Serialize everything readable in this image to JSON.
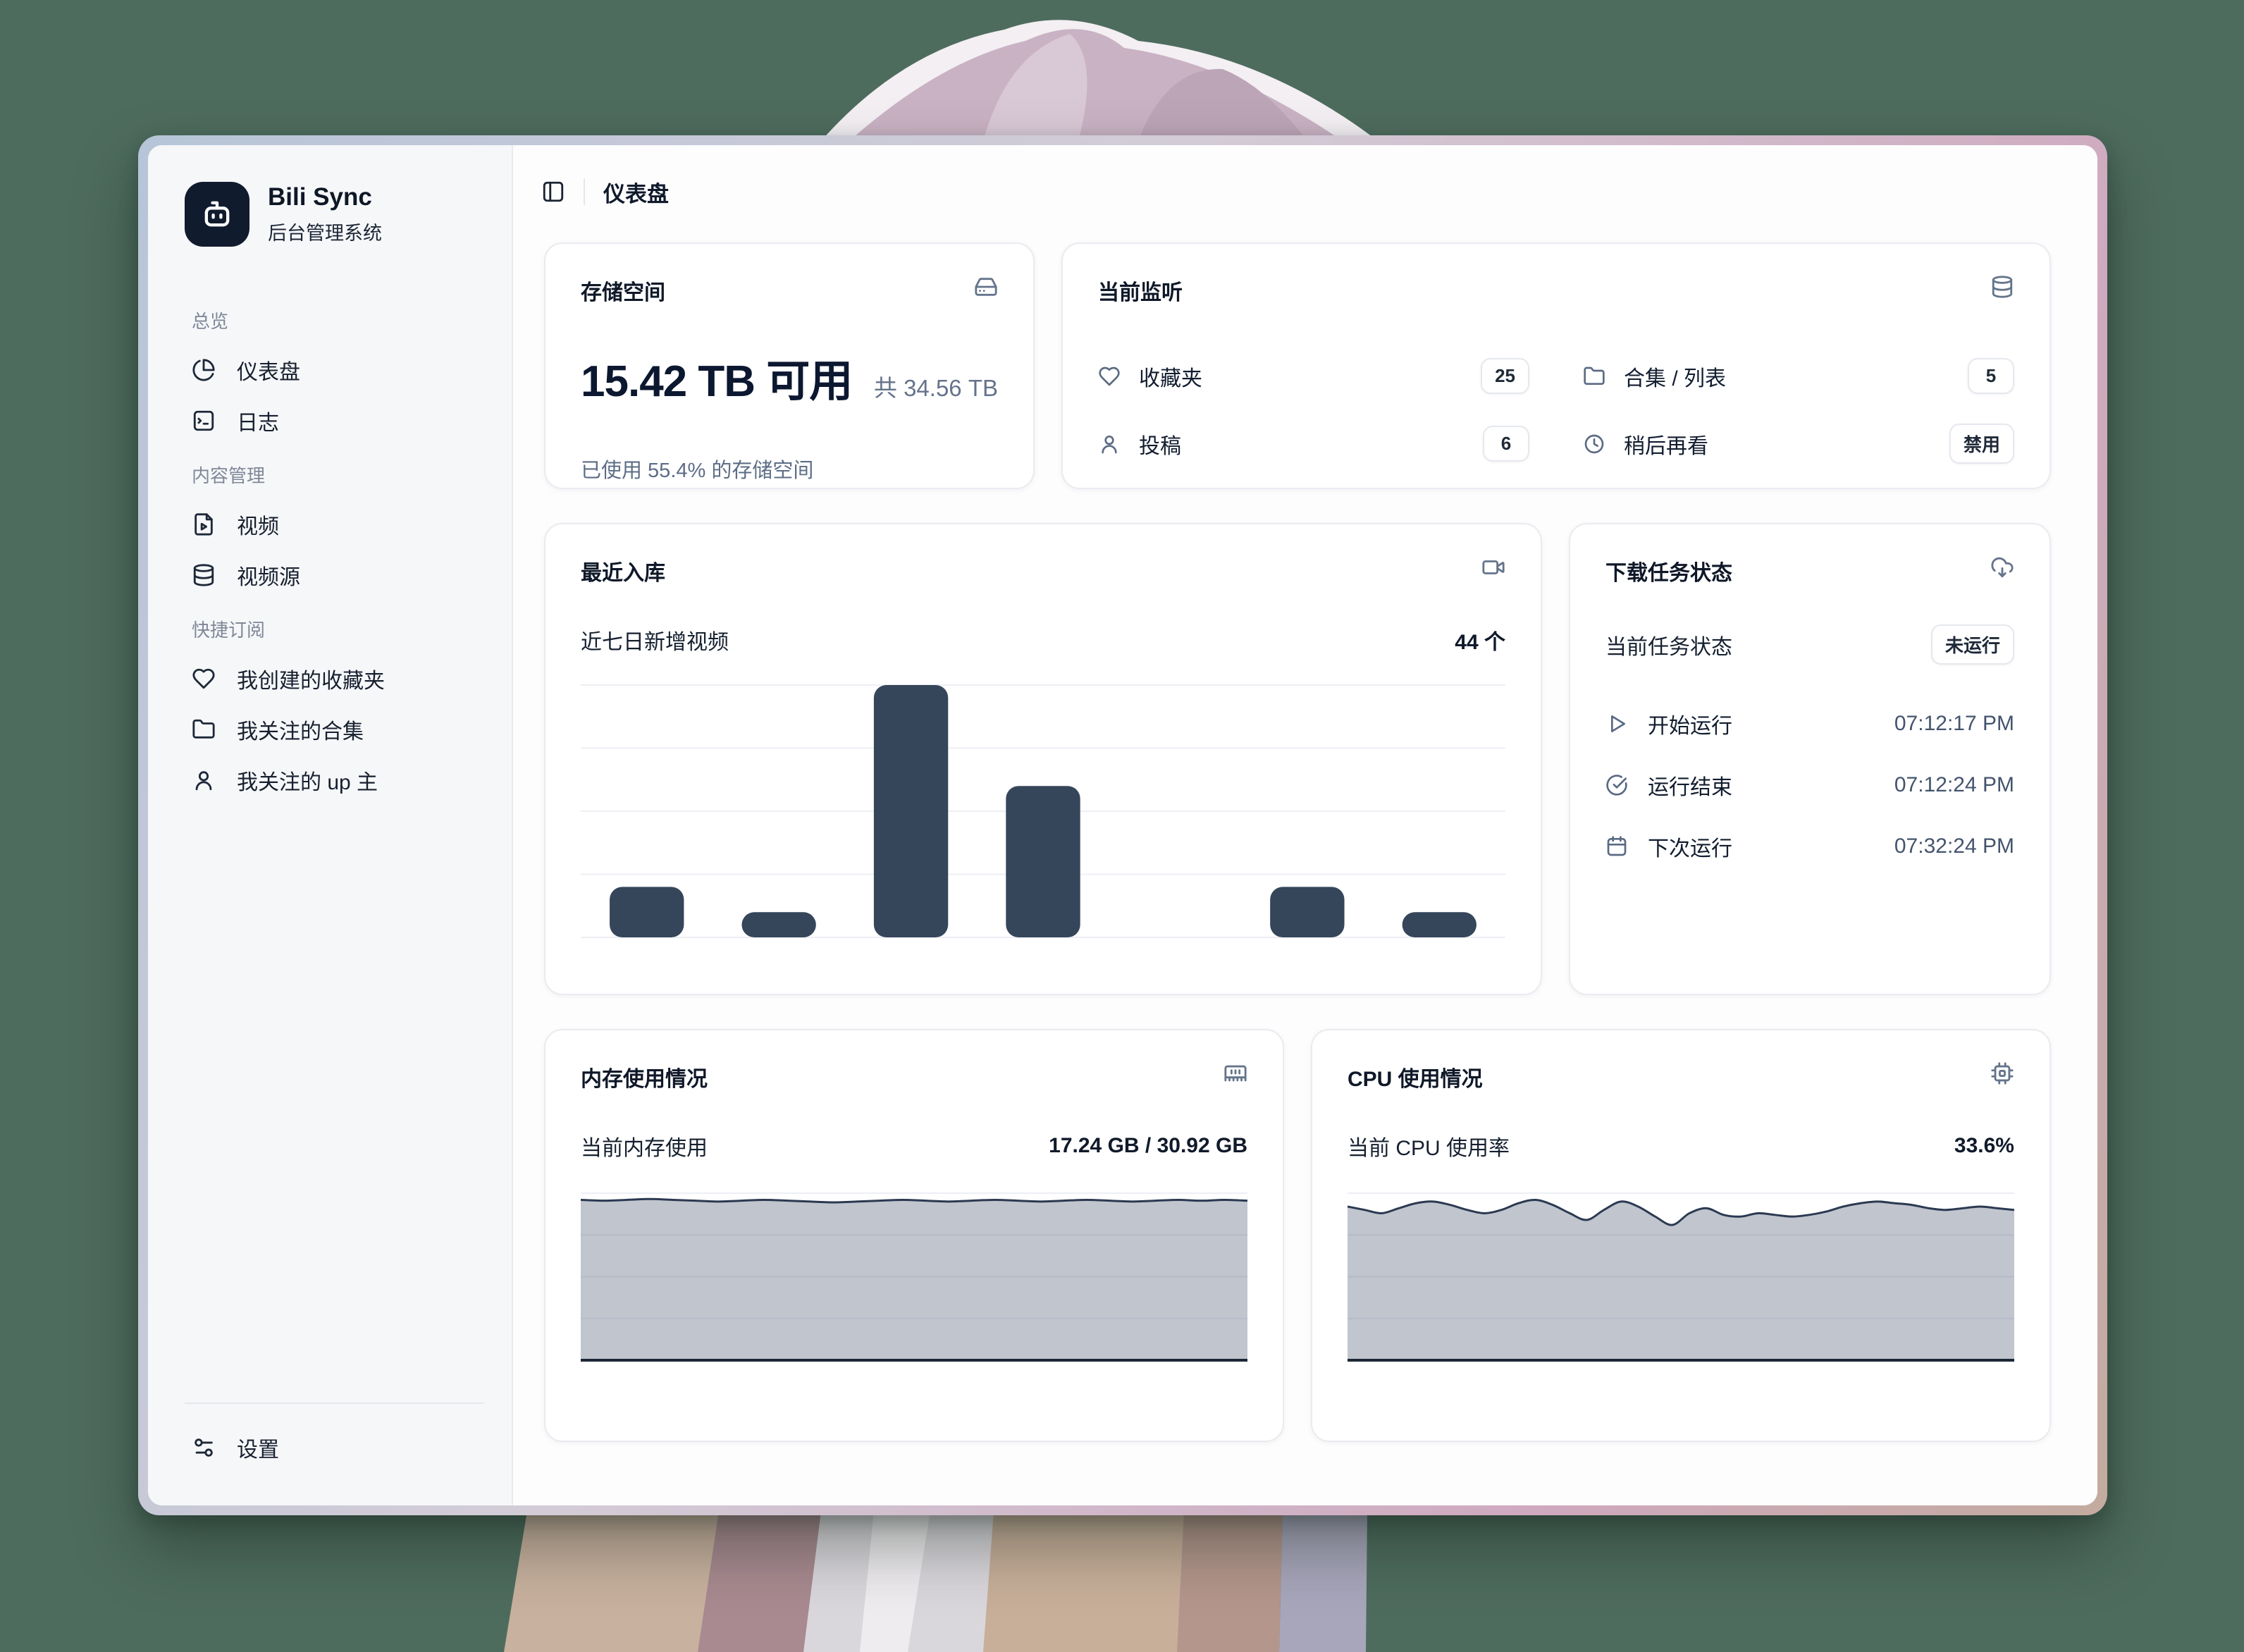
{
  "colors": {
    "background": "#4e6c5e",
    "frame_gradient_left": "#b6c5d8",
    "frame_gradient_right": "#cfa9bf",
    "sidebar_bg": "#f6f7f9",
    "card_border": "#e9ebf0",
    "text_dark": "#0f1828",
    "text_muted": "#5d6d86",
    "icon_slate": "#64748b",
    "progress_fill": "#16233c",
    "progress_track": "#d5d8dd",
    "bar": "#35455a",
    "area_fill": "rgba(104,116,138,0.42)",
    "area_stroke": "#2b3951",
    "area_baseline": "#1c2737",
    "gridline": "#edeff4"
  },
  "sidebar": {
    "logo": {
      "title": "Bili Sync",
      "subtitle": "后台管理系统"
    },
    "sections": [
      {
        "label": "总览",
        "items": [
          {
            "id": "dashboard",
            "icon": "pie-chart",
            "label": "仪表盘"
          },
          {
            "id": "logs",
            "icon": "terminal-square",
            "label": "日志"
          }
        ]
      },
      {
        "label": "内容管理",
        "items": [
          {
            "id": "videos",
            "icon": "file-video",
            "label": "视频"
          },
          {
            "id": "video-sources",
            "icon": "database",
            "label": "视频源"
          }
        ]
      },
      {
        "label": "快捷订阅",
        "items": [
          {
            "id": "my-favorites",
            "icon": "heart",
            "label": "我创建的收藏夹"
          },
          {
            "id": "followed-collections",
            "icon": "folder",
            "label": "我关注的合集"
          },
          {
            "id": "followed-uploaders",
            "icon": "user",
            "label": "我关注的 up 主"
          }
        ]
      }
    ],
    "footer": {
      "icon": "sliders",
      "label": "设置"
    }
  },
  "topbar": {
    "title": "仪表盘"
  },
  "cards": {
    "storage": {
      "title": "存储空间",
      "icon": "hard-drive",
      "available": "15.42 TB 可用",
      "total": "共 34.56 TB",
      "used_percent": 55.4,
      "caption": "已使用 55.4% 的存储空间"
    },
    "monitor": {
      "title": "当前监听",
      "icon": "database",
      "items": [
        {
          "icon": "heart",
          "label": "收藏夹",
          "value": "25"
        },
        {
          "icon": "folder",
          "label": "合集 / 列表",
          "value": "5"
        },
        {
          "icon": "user",
          "label": "投稿",
          "value": "6"
        },
        {
          "icon": "clock",
          "label": "稍后再看",
          "value": "禁用"
        }
      ]
    },
    "recent": {
      "title": "最近入库",
      "icon": "video-camera",
      "subtitle": "近七日新增视频",
      "count": "44 个",
      "chart": {
        "type": "bar",
        "values": [
          4,
          2,
          20,
          12,
          0,
          4,
          2
        ],
        "ymax": 20,
        "gridlines": [
          0,
          5,
          10,
          15,
          20
        ],
        "total_label": "44 个"
      }
    },
    "tasks": {
      "title": "下载任务状态",
      "icon": "cloud-download",
      "status_label": "当前任务状态",
      "status_value": "未运行",
      "rows": [
        {
          "icon": "play",
          "label": "开始运行",
          "value": "07:12:17 PM"
        },
        {
          "icon": "check-circle",
          "label": "运行结束",
          "value": "07:12:24 PM"
        },
        {
          "icon": "calendar",
          "label": "下次运行",
          "value": "07:32:24 PM"
        }
      ]
    },
    "memory": {
      "title": "内存使用情况",
      "icon": "memory",
      "label": "当前内存使用",
      "value": "17.24 GB / 30.92 GB",
      "chart": {
        "type": "area",
        "points_pct_from_top": [
          4,
          4.5,
          4,
          3.5,
          4,
          4.5,
          5,
          4.5,
          4,
          4.5,
          5,
          5.5,
          5,
          4.5,
          4,
          4.5,
          5,
          4.5,
          4,
          4.5,
          5,
          4.5,
          4,
          4.5,
          5,
          4.5,
          4,
          4.5,
          4,
          4.5
        ]
      }
    },
    "cpu": {
      "title": "CPU 使用情况",
      "icon": "cpu",
      "label": "当前 CPU 使用率",
      "value": "33.6%",
      "chart": {
        "type": "area",
        "points_pct_from_top": [
          8,
          10,
          12,
          9,
          6,
          5,
          7,
          10,
          12,
          10,
          6,
          4,
          7,
          12,
          16,
          10,
          5,
          8,
          14,
          19,
          12,
          9,
          13,
          14,
          12,
          13,
          14,
          13,
          11,
          8,
          6,
          5,
          6,
          7,
          9,
          10,
          9,
          8,
          9,
          10
        ]
      }
    }
  }
}
